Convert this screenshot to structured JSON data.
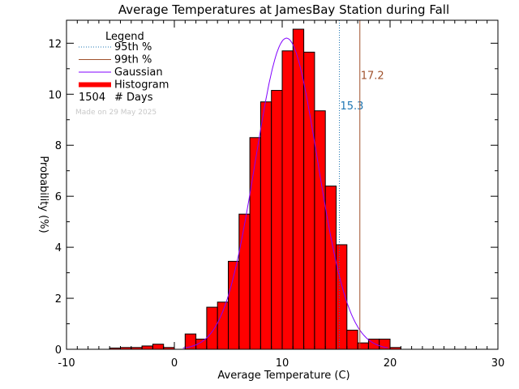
{
  "chart_data": {
    "type": "bar",
    "title": "Average Temperatures at JamesBay Station during Fall",
    "xlabel": "Average Temperature (C)",
    "ylabel": "Probability (%)",
    "xlim": [
      -10,
      30
    ],
    "ylim": [
      0,
      12.9
    ],
    "xticks": [
      -10,
      0,
      10,
      20,
      30
    ],
    "yticks": [
      0,
      2,
      4,
      6,
      8,
      10,
      12
    ],
    "bin_width": 1,
    "bin_starts": [
      -6,
      -5,
      -4,
      -3,
      -2,
      -1,
      0,
      1,
      2,
      3,
      4,
      5,
      6,
      7,
      8,
      9,
      10,
      11,
      12,
      13,
      14,
      15,
      16,
      17,
      18,
      19,
      20
    ],
    "values": [
      0.05,
      0.07,
      0.07,
      0.13,
      0.2,
      0.07,
      0.0,
      0.6,
      0.4,
      1.65,
      1.85,
      3.45,
      5.3,
      8.3,
      9.7,
      10.15,
      11.7,
      12.55,
      11.65,
      9.35,
      6.4,
      4.1,
      0.75,
      0.25,
      0.4,
      0.4,
      0.07
    ],
    "gaussian": {
      "name": "Gaussian",
      "mean": 10.4,
      "sigma": 2.88,
      "peak": 12.2,
      "color": "#8000ff"
    },
    "percentiles": [
      {
        "name": "95th %",
        "value": 15.3,
        "label": "15.3",
        "color": "#1f77b4",
        "style": "dotted"
      },
      {
        "name": "99th %",
        "value": 17.2,
        "label": "17.2",
        "color": "#a0522d",
        "style": "solid"
      }
    ],
    "histogram_color": "#ff0000",
    "legend": {
      "title": "Legend",
      "placement": "top-left",
      "entries": [
        "95th %",
        "99th %",
        "Gaussian",
        "Histogram"
      ],
      "days_count": "1504",
      "days_label": "# Days"
    },
    "watermark": "Made on 29 May 2025"
  }
}
